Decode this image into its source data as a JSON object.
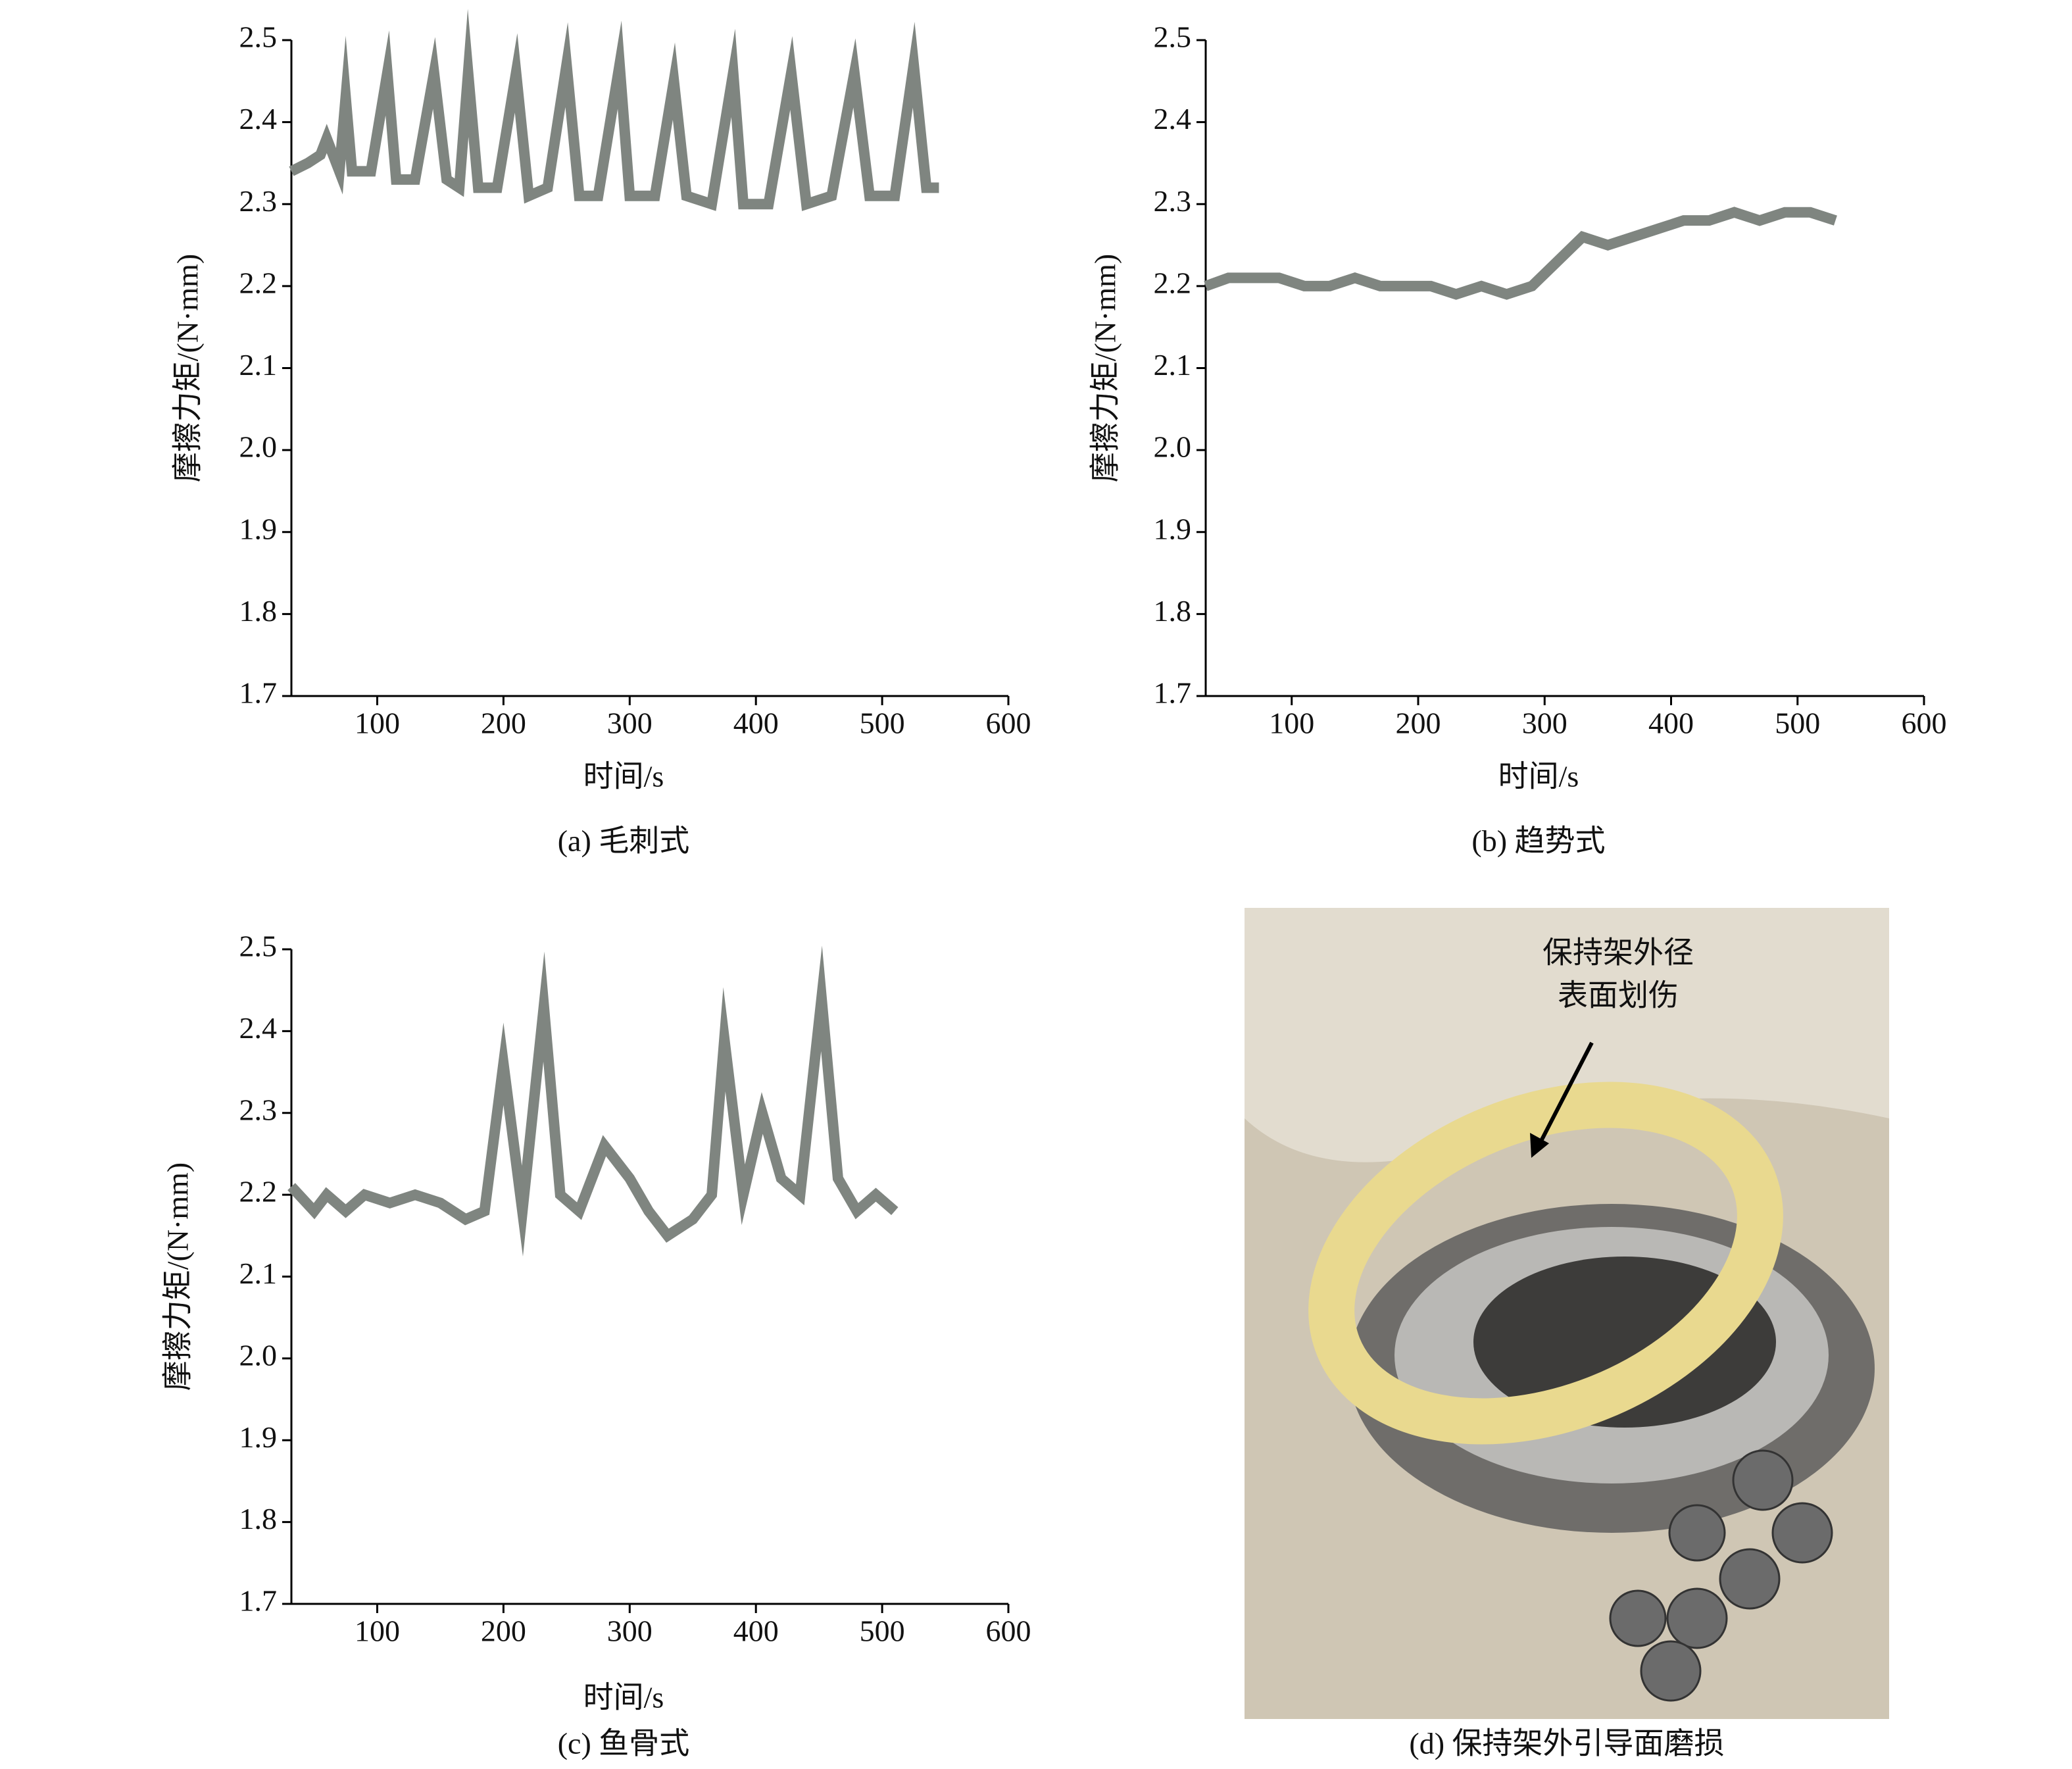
{
  "chart_data": [
    {
      "type": "line",
      "caption": "(a) 毛刺式",
      "x_label": "时间/s",
      "y_label": "摩擦力矩/(N·mm)",
      "x": [
        32,
        45,
        55,
        60,
        70,
        75,
        80,
        95,
        108,
        115,
        130,
        145,
        155,
        165,
        172,
        180,
        195,
        210,
        220,
        235,
        250,
        260,
        275,
        292,
        300,
        320,
        335,
        345,
        365,
        382,
        390,
        410,
        428,
        440,
        460,
        478,
        490,
        510,
        525,
        535,
        545
      ],
      "series": [
        {
          "color": "#7f8580",
          "values": [
            2.34,
            2.35,
            2.36,
            2.38,
            2.34,
            2.43,
            2.34,
            2.34,
            2.46,
            2.33,
            2.33,
            2.46,
            2.33,
            2.32,
            2.46,
            2.32,
            2.32,
            2.46,
            2.31,
            2.32,
            2.47,
            2.31,
            2.31,
            2.47,
            2.31,
            2.31,
            2.45,
            2.31,
            2.3,
            2.46,
            2.3,
            2.3,
            2.46,
            2.3,
            2.31,
            2.46,
            2.31,
            2.31,
            2.47,
            2.32,
            2.32
          ]
        }
      ],
      "xlim": [
        32,
        600
      ],
      "xticks": [
        100,
        200,
        300,
        400,
        500,
        600
      ],
      "ylim": [
        1.7,
        2.5
      ],
      "yticks": [
        1.7,
        1.8,
        1.9,
        {
          "value": 2.0,
          "label": "2.0"
        },
        2.1,
        2.2,
        2.3,
        2.4,
        2.5
      ]
    },
    {
      "type": "line",
      "caption": "(b) 趋势式",
      "x_label": "时间/s",
      "y_label": "摩擦力矩/(N·mm)",
      "x": [
        32,
        50,
        70,
        90,
        110,
        130,
        150,
        170,
        190,
        210,
        230,
        250,
        270,
        290,
        310,
        330,
        350,
        370,
        390,
        410,
        430,
        450,
        470,
        490,
        510,
        530
      ],
      "series": [
        {
          "color": "#7f8580",
          "values": [
            2.2,
            2.21,
            2.21,
            2.21,
            2.2,
            2.2,
            2.21,
            2.2,
            2.2,
            2.2,
            2.19,
            2.2,
            2.19,
            2.2,
            2.23,
            2.26,
            2.25,
            2.26,
            2.27,
            2.28,
            2.28,
            2.29,
            2.28,
            2.29,
            2.29,
            2.28
          ]
        }
      ],
      "xlim": [
        32,
        600
      ],
      "xticks": [
        100,
        200,
        300,
        400,
        500,
        600
      ],
      "ylim": [
        1.7,
        2.5
      ],
      "yticks": [
        1.7,
        1.8,
        1.9,
        {
          "value": 2.0,
          "label": "2.0"
        },
        2.1,
        2.2,
        2.3,
        2.4,
        2.5
      ]
    },
    {
      "type": "line",
      "caption": "(c) 鱼骨式",
      "x_label": "时间/s",
      "y_label": "摩擦力矩/(N·mm)",
      "x": [
        32,
        50,
        60,
        75,
        90,
        110,
        130,
        150,
        170,
        185,
        200,
        215,
        232,
        245,
        260,
        280,
        300,
        315,
        330,
        350,
        365,
        375,
        390,
        405,
        420,
        435,
        452,
        465,
        480,
        495,
        510
      ],
      "series": [
        {
          "color": "#7f8580",
          "values": [
            2.21,
            2.18,
            2.2,
            2.18,
            2.2,
            2.19,
            2.2,
            2.19,
            2.17,
            2.18,
            2.36,
            2.18,
            2.43,
            2.2,
            2.18,
            2.26,
            2.22,
            2.18,
            2.15,
            2.17,
            2.2,
            2.39,
            2.2,
            2.3,
            2.22,
            2.2,
            2.44,
            2.22,
            2.18,
            2.2,
            2.18
          ]
        }
      ],
      "xlim": [
        32,
        600
      ],
      "xticks": [
        100,
        200,
        300,
        400,
        500,
        600
      ],
      "ylim": [
        1.7,
        2.5
      ],
      "yticks": [
        1.7,
        1.8,
        1.9,
        {
          "value": 2.0,
          "label": "2.0"
        },
        2.1,
        2.2,
        2.3,
        2.4,
        2.5
      ]
    }
  ],
  "photo": {
    "annotation": [
      "保持架外径",
      "表面划伤"
    ],
    "caption": "(d) 保持架外引导面磨损"
  }
}
